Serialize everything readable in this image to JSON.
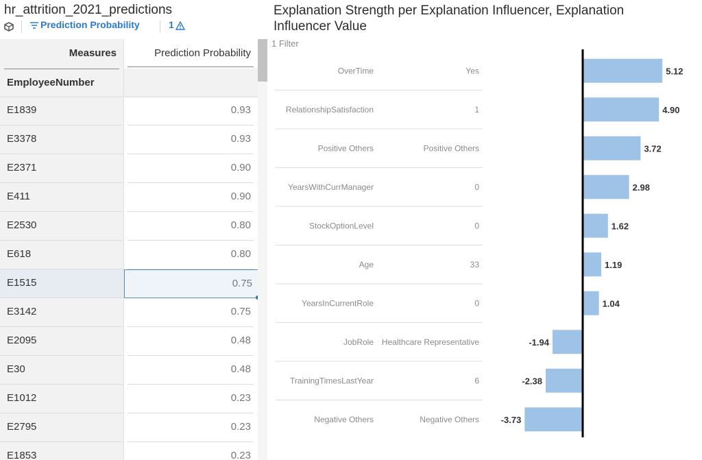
{
  "left_panel": {
    "title": "hr_attrition_2021_predictions",
    "toolbar": {
      "filter_label": "Prediction Probability",
      "warning_count": "1"
    },
    "table": {
      "measures_header": "Measures",
      "measure_column": "Prediction Probability",
      "row_dimension_header": "EmployeeNumber",
      "selected_row": 6,
      "rows": [
        {
          "id": "E1839",
          "value": "0.93"
        },
        {
          "id": "E3378",
          "value": "0.93"
        },
        {
          "id": "E2371",
          "value": "0.90"
        },
        {
          "id": "E411",
          "value": "0.90"
        },
        {
          "id": "E2530",
          "value": "0.80"
        },
        {
          "id": "E618",
          "value": "0.80"
        },
        {
          "id": "E1515",
          "value": "0.75"
        },
        {
          "id": "E3142",
          "value": "0.75"
        },
        {
          "id": "E2095",
          "value": "0.48"
        },
        {
          "id": "E30",
          "value": "0.48"
        },
        {
          "id": "E1012",
          "value": "0.23"
        },
        {
          "id": "E2795",
          "value": "0.23"
        },
        {
          "id": "E1853",
          "value": "0.23"
        }
      ]
    }
  },
  "right_panel": {
    "title": "Explanation Strength per Explanation Influencer, Explanation Influencer Value",
    "filter_text": "1 Filter"
  },
  "chart_data": {
    "type": "bar",
    "orientation": "horizontal",
    "categories": [
      {
        "influencer": "OverTime",
        "value": "Yes"
      },
      {
        "influencer": "RelationshipSatisfaction",
        "value": "1"
      },
      {
        "influencer": "Positive Others",
        "value": "Positive Others"
      },
      {
        "influencer": "YearsWithCurrManager",
        "value": "0"
      },
      {
        "influencer": "StockOptionLevel",
        "value": "0"
      },
      {
        "influencer": "Age",
        "value": "33"
      },
      {
        "influencer": "YearsInCurrentRole",
        "value": "0"
      },
      {
        "influencer": "JobRole",
        "value": "Healthcare Representative"
      },
      {
        "influencer": "TrainingTimesLastYear",
        "value": "6"
      },
      {
        "influencer": "Negative Others",
        "value": "Negative Others"
      }
    ],
    "values": [
      5.12,
      4.9,
      3.72,
      2.98,
      1.62,
      1.19,
      1.04,
      -1.94,
      -2.38,
      -3.73
    ],
    "value_labels": [
      "5.12",
      "4.90",
      "3.72",
      "2.98",
      "1.62",
      "1.19",
      "1.04",
      "-1.94",
      "-2.38",
      "-3.73"
    ],
    "xlim": [
      -3.73,
      5.12
    ],
    "bar_color": "#9fc3e7",
    "zero_line_color": "#000000",
    "grid": false,
    "legend": "none"
  },
  "icons": {
    "cube": "cube-icon",
    "filter": "filter-icon",
    "warning": "warning-icon"
  }
}
